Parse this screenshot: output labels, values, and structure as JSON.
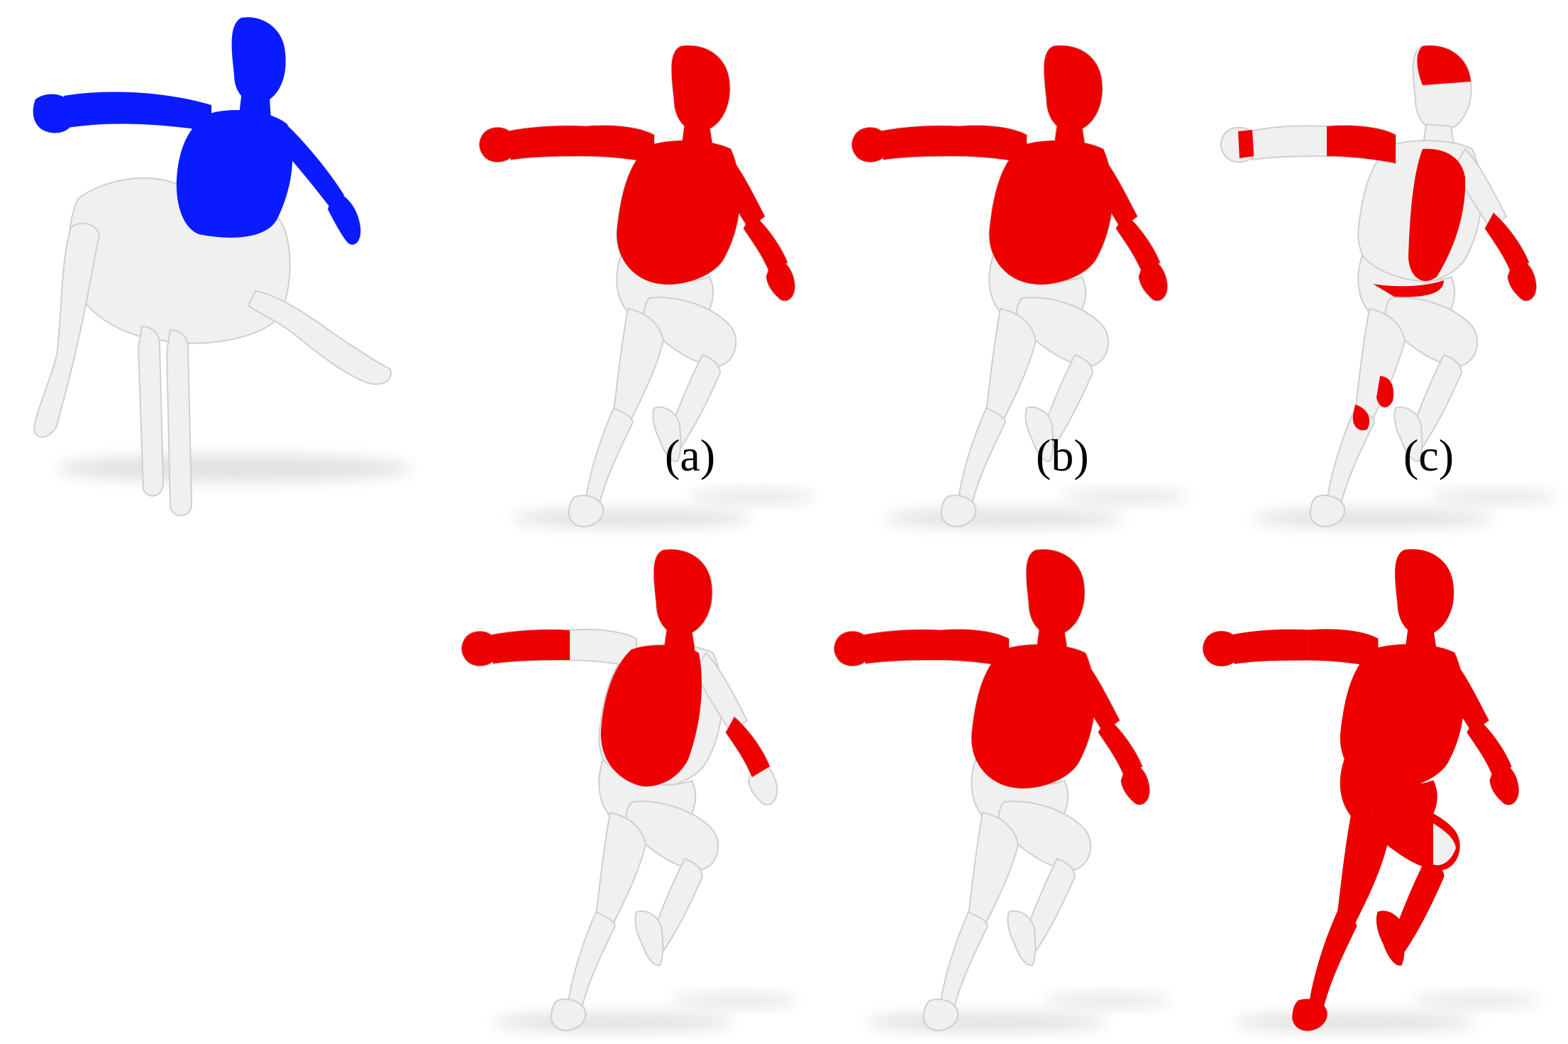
{
  "figure": {
    "panel_labels": [
      "(a)",
      "(b)",
      "(c)"
    ],
    "colors": {
      "source_region": "#0a1cff",
      "match_region": "#ee0000",
      "mesh_base": "#f0f0f0",
      "shadow": "#e2e2e2",
      "outline": "#cfcfcf"
    },
    "source_shape": "centaur",
    "target_shape": "running-human"
  }
}
